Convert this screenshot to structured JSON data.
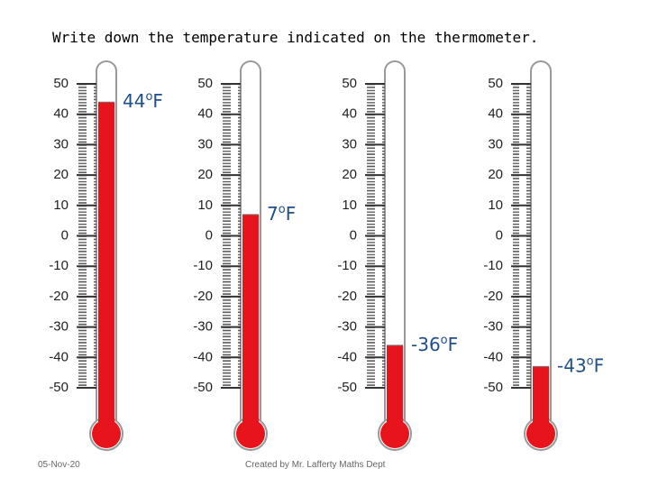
{
  "title": "Write down the temperature indicated on the thermometer.",
  "scale": [
    50,
    40,
    30,
    20,
    10,
    0,
    -10,
    -20,
    -30,
    -40,
    -50
  ],
  "degree": "o",
  "unit": "F",
  "thermometers": [
    {
      "reading": 44
    },
    {
      "reading": 7
    },
    {
      "reading": -36
    },
    {
      "reading": -43
    }
  ],
  "footer": {
    "date": "05-Nov-20",
    "credit": "Created by Mr. Lafferty Maths Dept"
  }
}
